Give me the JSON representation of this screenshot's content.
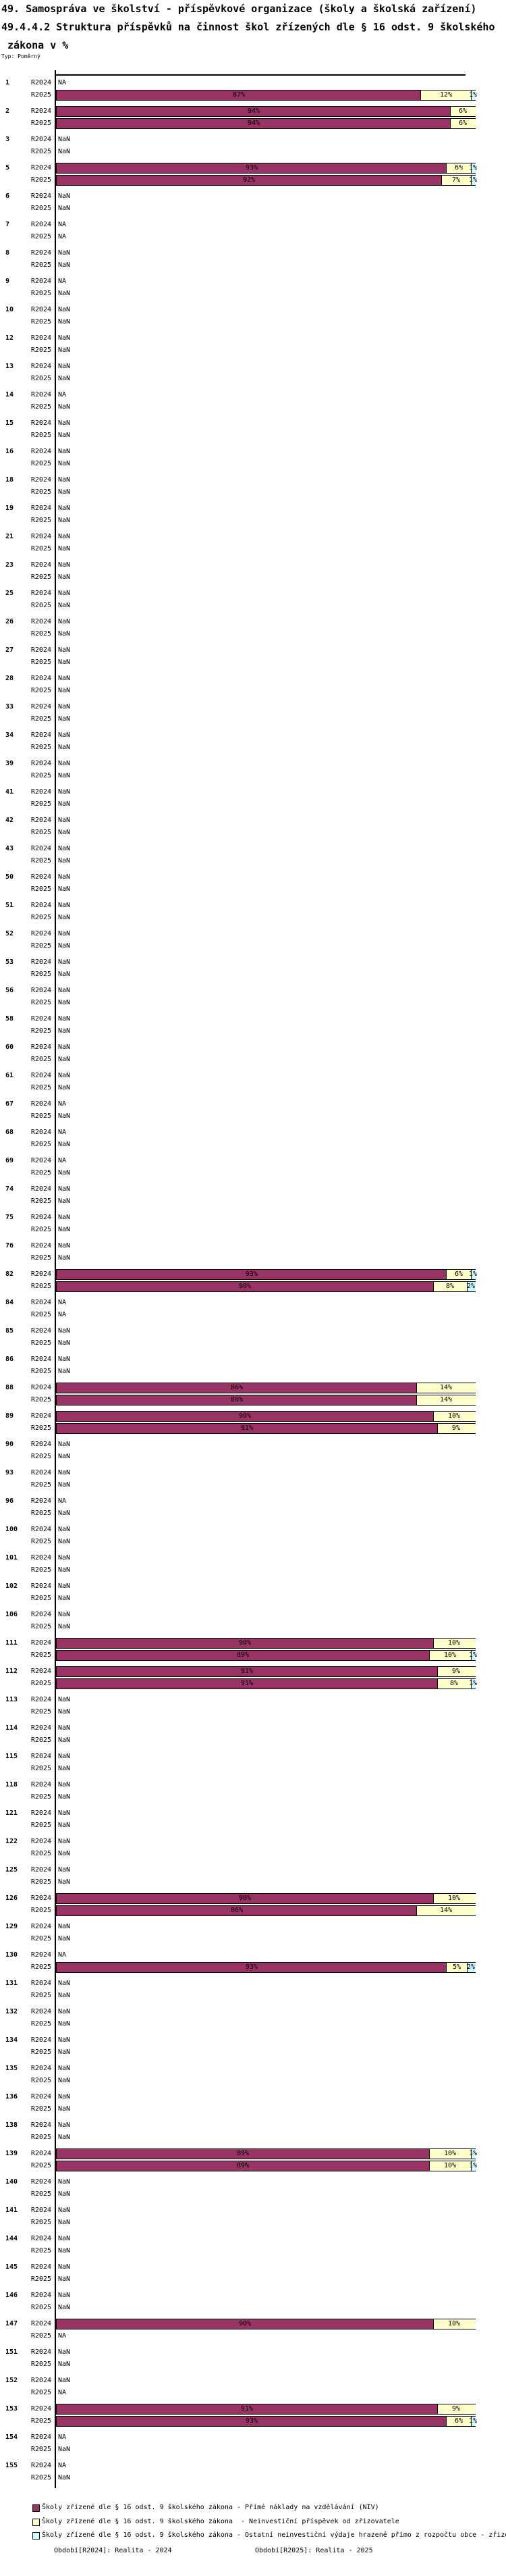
{
  "title": {
    "line1": "49. Samospráva ve školství - příspěvkové organizace (školy a školská zařízení)",
    "line2": "49.4.4.2 Struktura příspěvků na činnost škol zřízených dle § 16 odst. 9 školského",
    "line3": " zákona v %",
    "type_label": "Typ: Poměrný"
  },
  "footer": {
    "left": "Období[R2024]: Realita - 2024",
    "right": "Období[R2025]: Realita - 2025"
  },
  "legend": [
    {
      "color": "#993366",
      "label": "Školy zřízené dle § 16 odst. 9 školského zákona - Přímé náklady na vzdělávání (NIV)"
    },
    {
      "color": "#FFFFCC",
      "label": "Školy zřízené dle § 16 odst. 9 školského zákona  - Neinvestiční příspěvek od zřizovatele"
    },
    {
      "color": "#CCFFFF",
      "label": "Školy zřízené dle § 16 odst. 9 školského zákona - Ostatní neinvestiční výdaje hrazené přímo z rozpočtu obce - zřizovatele"
    }
  ],
  "chart_data": {
    "type": "bar",
    "orientation": "horizontal-stacked",
    "unit": "%",
    "xlim": [
      0,
      100
    ],
    "grid": false,
    "rows_per_group": [
      "R2024",
      "R2025"
    ],
    "segment_names": [
      "Přímé náklady na vzdělávání (NIV)",
      "Neinvestiční příspěvek od zřizovatele",
      "Ostatní neinvestiční výdaje hrazené přímo z rozpočtu obce - zřizovatele"
    ],
    "segment_colors": [
      "#993366",
      "#FFFFCC",
      "#CCFFFF"
    ],
    "missing_values_legend": {
      "NA": "not available",
      "NaN": "not a number"
    },
    "groups": [
      {
        "id": "1",
        "r2024": "NA",
        "r2025": [
          87,
          12,
          1
        ]
      },
      {
        "id": "2",
        "r2024": [
          94,
          6
        ],
        "r2025": [
          94,
          6
        ]
      },
      {
        "id": "3",
        "r2024": "NaN",
        "r2025": "NaN"
      },
      {
        "id": "5",
        "r2024": [
          93,
          6,
          1
        ],
        "r2025": [
          92,
          7,
          1
        ]
      },
      {
        "id": "6",
        "r2024": "NaN",
        "r2025": "NaN"
      },
      {
        "id": "7",
        "r2024": "NA",
        "r2025": "NA"
      },
      {
        "id": "8",
        "r2024": "NaN",
        "r2025": "NaN"
      },
      {
        "id": "9",
        "r2024": "NA",
        "r2025": "NaN"
      },
      {
        "id": "10",
        "r2024": "NaN",
        "r2025": "NaN"
      },
      {
        "id": "12",
        "r2024": "NaN",
        "r2025": "NaN"
      },
      {
        "id": "13",
        "r2024": "NaN",
        "r2025": "NaN"
      },
      {
        "id": "14",
        "r2024": "NA",
        "r2025": "NaN"
      },
      {
        "id": "15",
        "r2024": "NaN",
        "r2025": "NaN"
      },
      {
        "id": "16",
        "r2024": "NaN",
        "r2025": "NaN"
      },
      {
        "id": "18",
        "r2024": "NaN",
        "r2025": "NaN"
      },
      {
        "id": "19",
        "r2024": "NaN",
        "r2025": "NaN"
      },
      {
        "id": "21",
        "r2024": "NaN",
        "r2025": "NaN"
      },
      {
        "id": "23",
        "r2024": "NaN",
        "r2025": "NaN"
      },
      {
        "id": "25",
        "r2024": "NaN",
        "r2025": "NaN"
      },
      {
        "id": "26",
        "r2024": "NaN",
        "r2025": "NaN"
      },
      {
        "id": "27",
        "r2024": "NaN",
        "r2025": "NaN"
      },
      {
        "id": "28",
        "r2024": "NaN",
        "r2025": "NaN"
      },
      {
        "id": "33",
        "r2024": "NaN",
        "r2025": "NaN"
      },
      {
        "id": "34",
        "r2024": "NaN",
        "r2025": "NaN"
      },
      {
        "id": "39",
        "r2024": "NaN",
        "r2025": "NaN"
      },
      {
        "id": "41",
        "r2024": "NaN",
        "r2025": "NaN"
      },
      {
        "id": "42",
        "r2024": "NaN",
        "r2025": "NaN"
      },
      {
        "id": "43",
        "r2024": "NaN",
        "r2025": "NaN"
      },
      {
        "id": "50",
        "r2024": "NaN",
        "r2025": "NaN"
      },
      {
        "id": "51",
        "r2024": "NaN",
        "r2025": "NaN"
      },
      {
        "id": "52",
        "r2024": "NaN",
        "r2025": "NaN"
      },
      {
        "id": "53",
        "r2024": "NaN",
        "r2025": "NaN"
      },
      {
        "id": "56",
        "r2024": "NaN",
        "r2025": "NaN"
      },
      {
        "id": "58",
        "r2024": "NaN",
        "r2025": "NaN"
      },
      {
        "id": "60",
        "r2024": "NaN",
        "r2025": "NaN"
      },
      {
        "id": "61",
        "r2024": "NaN",
        "r2025": "NaN"
      },
      {
        "id": "67",
        "r2024": "NA",
        "r2025": "NaN"
      },
      {
        "id": "68",
        "r2024": "NA",
        "r2025": "NaN"
      },
      {
        "id": "69",
        "r2024": "NA",
        "r2025": "NaN"
      },
      {
        "id": "74",
        "r2024": "NaN",
        "r2025": "NaN"
      },
      {
        "id": "75",
        "r2024": "NaN",
        "r2025": "NaN"
      },
      {
        "id": "76",
        "r2024": "NaN",
        "r2025": "NaN"
      },
      {
        "id": "82",
        "r2024": [
          93,
          6,
          1
        ],
        "r2025": [
          90,
          8,
          2
        ]
      },
      {
        "id": "84",
        "r2024": "NA",
        "r2025": "NA"
      },
      {
        "id": "85",
        "r2024": "NaN",
        "r2025": "NaN"
      },
      {
        "id": "86",
        "r2024": "NaN",
        "r2025": "NaN"
      },
      {
        "id": "88",
        "r2024": [
          86,
          14
        ],
        "r2025": [
          86,
          14
        ]
      },
      {
        "id": "89",
        "r2024": [
          90,
          10
        ],
        "r2025": [
          91,
          9
        ]
      },
      {
        "id": "90",
        "r2024": "NaN",
        "r2025": "NaN"
      },
      {
        "id": "93",
        "r2024": "NaN",
        "r2025": "NaN"
      },
      {
        "id": "96",
        "r2024": "NA",
        "r2025": "NaN"
      },
      {
        "id": "100",
        "r2024": "NaN",
        "r2025": "NaN"
      },
      {
        "id": "101",
        "r2024": "NaN",
        "r2025": "NaN"
      },
      {
        "id": "102",
        "r2024": "NaN",
        "r2025": "NaN"
      },
      {
        "id": "106",
        "r2024": "NaN",
        "r2025": "NaN"
      },
      {
        "id": "111",
        "r2024": [
          90,
          10
        ],
        "r2025": [
          89,
          10,
          1
        ]
      },
      {
        "id": "112",
        "r2024": [
          91,
          9
        ],
        "r2025": [
          91,
          8,
          1
        ]
      },
      {
        "id": "113",
        "r2024": "NaN",
        "r2025": "NaN"
      },
      {
        "id": "114",
        "r2024": "NaN",
        "r2025": "NaN"
      },
      {
        "id": "115",
        "r2024": "NaN",
        "r2025": "NaN"
      },
      {
        "id": "118",
        "r2024": "NaN",
        "r2025": "NaN"
      },
      {
        "id": "121",
        "r2024": "NaN",
        "r2025": "NaN"
      },
      {
        "id": "122",
        "r2024": "NaN",
        "r2025": "NaN"
      },
      {
        "id": "125",
        "r2024": "NaN",
        "r2025": "NaN"
      },
      {
        "id": "126",
        "r2024": [
          90,
          10
        ],
        "r2025": [
          86,
          14
        ]
      },
      {
        "id": "129",
        "r2024": "NaN",
        "r2025": "NaN"
      },
      {
        "id": "130",
        "r2024": "NA",
        "r2025": [
          93,
          5,
          2
        ]
      },
      {
        "id": "131",
        "r2024": "NaN",
        "r2025": "NaN"
      },
      {
        "id": "132",
        "r2024": "NaN",
        "r2025": "NaN"
      },
      {
        "id": "134",
        "r2024": "NaN",
        "r2025": "NaN"
      },
      {
        "id": "135",
        "r2024": "NaN",
        "r2025": "NaN"
      },
      {
        "id": "136",
        "r2024": "NaN",
        "r2025": "NaN"
      },
      {
        "id": "138",
        "r2024": "NaN",
        "r2025": "NaN"
      },
      {
        "id": "139",
        "r2024": [
          89,
          10,
          1
        ],
        "r2025": [
          89,
          10,
          1
        ]
      },
      {
        "id": "140",
        "r2024": "NaN",
        "r2025": "NaN"
      },
      {
        "id": "141",
        "r2024": "NaN",
        "r2025": "NaN"
      },
      {
        "id": "144",
        "r2024": "NaN",
        "r2025": "NaN"
      },
      {
        "id": "145",
        "r2024": "NaN",
        "r2025": "NaN"
      },
      {
        "id": "146",
        "r2024": "NaN",
        "r2025": "NaN"
      },
      {
        "id": "147",
        "r2024": [
          90,
          10
        ],
        "r2025": "NA"
      },
      {
        "id": "151",
        "r2024": "NaN",
        "r2025": "NaN"
      },
      {
        "id": "152",
        "r2024": "NaN",
        "r2025": "NA"
      },
      {
        "id": "153",
        "r2024": [
          91,
          9
        ],
        "r2025": [
          93,
          6,
          1
        ]
      },
      {
        "id": "154",
        "r2024": "NA",
        "r2025": "NaN"
      },
      {
        "id": "155",
        "r2024": "NA",
        "r2025": "NaN"
      }
    ]
  }
}
